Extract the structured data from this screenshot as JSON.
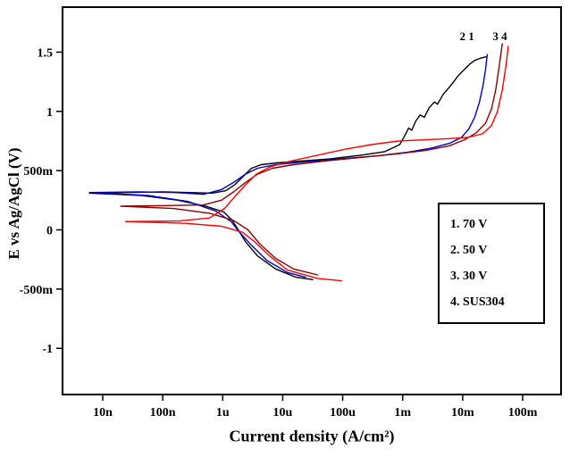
{
  "chart_data": {
    "type": "line",
    "title": "",
    "xlabel": "Current density (A/cm²)",
    "ylabel": "E vs Ag/AgCl (V)",
    "x_scale": "log10",
    "grid": false,
    "xlog_range": [
      -8.67,
      -0.36
    ],
    "ylim": [
      -1.39,
      1.88
    ],
    "x_ticks": [
      {
        "log": -8,
        "label": "10n"
      },
      {
        "log": -7,
        "label": "100n"
      },
      {
        "log": -6,
        "label": "1u"
      },
      {
        "log": -5,
        "label": "10u"
      },
      {
        "log": -4,
        "label": "100u"
      },
      {
        "log": -3,
        "label": "1m"
      },
      {
        "log": -2,
        "label": "10m"
      },
      {
        "log": -1,
        "label": "100m"
      }
    ],
    "y_ticks": [
      {
        "v": 1.5,
        "label": "1.5"
      },
      {
        "v": 1.0,
        "label": "1"
      },
      {
        "v": 0.5,
        "label": "500m"
      },
      {
        "v": 0.0,
        "label": "0"
      },
      {
        "v": -0.5,
        "label": "-500m"
      },
      {
        "v": -1.0,
        "label": "-1"
      }
    ],
    "annotations": [
      {
        "text": "2 1",
        "logx": -1.93,
        "v": 1.6
      },
      {
        "text": "3 4",
        "logx": -1.38,
        "v": 1.6
      }
    ],
    "legend": {
      "position": "right-middle",
      "items": [
        "1. 70 V",
        "2. 50 V",
        "3. 30 V",
        "4. SUS304"
      ]
    },
    "series": [
      {
        "name": "1. 70 V",
        "color": "#000000",
        "points": [
          [
            -4.5,
            -0.42
          ],
          [
            -4.78,
            -0.4
          ],
          [
            -5.12,
            -0.33
          ],
          [
            -5.42,
            -0.22
          ],
          [
            -5.62,
            -0.1
          ],
          [
            -5.74,
            0.0
          ],
          [
            -5.84,
            0.08
          ],
          [
            -5.98,
            0.15
          ],
          [
            -6.28,
            0.2
          ],
          [
            -6.75,
            0.25
          ],
          [
            -7.35,
            0.29
          ],
          [
            -8.22,
            0.31
          ],
          [
            -7.6,
            0.315
          ],
          [
            -7.0,
            0.32
          ],
          [
            -6.55,
            0.315
          ],
          [
            -6.18,
            0.31
          ],
          [
            -5.95,
            0.33
          ],
          [
            -5.8,
            0.38
          ],
          [
            -5.66,
            0.45
          ],
          [
            -5.52,
            0.52
          ],
          [
            -5.36,
            0.55
          ],
          [
            -5.1,
            0.565
          ],
          [
            -4.7,
            0.58
          ],
          [
            -4.2,
            0.6
          ],
          [
            -3.7,
            0.63
          ],
          [
            -3.3,
            0.66
          ],
          [
            -3.05,
            0.72
          ],
          [
            -2.97,
            0.79
          ],
          [
            -2.9,
            0.86
          ],
          [
            -2.85,
            0.84
          ],
          [
            -2.78,
            0.92
          ],
          [
            -2.71,
            0.97
          ],
          [
            -2.64,
            0.95
          ],
          [
            -2.56,
            1.03
          ],
          [
            -2.47,
            1.08
          ],
          [
            -2.42,
            1.06
          ],
          [
            -2.33,
            1.14
          ],
          [
            -2.23,
            1.2
          ],
          [
            -2.15,
            1.25
          ],
          [
            -2.06,
            1.31
          ],
          [
            -1.96,
            1.36
          ],
          [
            -1.88,
            1.4
          ],
          [
            -1.8,
            1.43
          ],
          [
            -1.7,
            1.45
          ],
          [
            -1.61,
            1.46
          ]
        ]
      },
      {
        "name": "2. 50 V",
        "color": "#0000cc",
        "points": [
          [
            -4.62,
            -0.4
          ],
          [
            -4.92,
            -0.36
          ],
          [
            -5.26,
            -0.26
          ],
          [
            -5.52,
            -0.13
          ],
          [
            -5.72,
            -0.02
          ],
          [
            -5.86,
            0.07
          ],
          [
            -6.12,
            0.16
          ],
          [
            -6.58,
            0.24
          ],
          [
            -7.25,
            0.29
          ],
          [
            -8.22,
            0.315
          ],
          [
            -7.4,
            0.32
          ],
          [
            -6.8,
            0.315
          ],
          [
            -6.32,
            0.3
          ],
          [
            -6.02,
            0.34
          ],
          [
            -5.82,
            0.4
          ],
          [
            -5.62,
            0.47
          ],
          [
            -5.42,
            0.52
          ],
          [
            -5.12,
            0.55
          ],
          [
            -4.62,
            0.575
          ],
          [
            -4.02,
            0.6
          ],
          [
            -3.42,
            0.625
          ],
          [
            -2.92,
            0.655
          ],
          [
            -2.52,
            0.69
          ],
          [
            -2.22,
            0.73
          ],
          [
            -2.02,
            0.78
          ],
          [
            -1.9,
            0.85
          ],
          [
            -1.8,
            0.95
          ],
          [
            -1.72,
            1.08
          ],
          [
            -1.66,
            1.22
          ],
          [
            -1.62,
            1.35
          ],
          [
            -1.59,
            1.48
          ]
        ]
      },
      {
        "name": "3. 30 V",
        "color": "#8b0000",
        "points": [
          [
            -4.42,
            -0.38
          ],
          [
            -4.82,
            -0.33
          ],
          [
            -5.12,
            -0.24
          ],
          [
            -5.38,
            -0.12
          ],
          [
            -5.58,
            0.0
          ],
          [
            -5.82,
            0.08
          ],
          [
            -6.22,
            0.14
          ],
          [
            -6.82,
            0.18
          ],
          [
            -7.7,
            0.2
          ],
          [
            -6.92,
            0.205
          ],
          [
            -6.32,
            0.21
          ],
          [
            -6.02,
            0.25
          ],
          [
            -5.82,
            0.32
          ],
          [
            -5.62,
            0.4
          ],
          [
            -5.42,
            0.47
          ],
          [
            -5.17,
            0.52
          ],
          [
            -4.82,
            0.55
          ],
          [
            -4.32,
            0.58
          ],
          [
            -3.72,
            0.61
          ],
          [
            -3.12,
            0.64
          ],
          [
            -2.62,
            0.67
          ],
          [
            -2.22,
            0.71
          ],
          [
            -1.97,
            0.76
          ],
          [
            -1.77,
            0.82
          ],
          [
            -1.62,
            0.9
          ],
          [
            -1.52,
            1.02
          ],
          [
            -1.45,
            1.18
          ],
          [
            -1.4,
            1.35
          ],
          [
            -1.36,
            1.5
          ],
          [
            -1.34,
            1.57
          ]
        ]
      },
      {
        "name": "4. SUS304",
        "color": "#ff0000",
        "points": [
          [
            -4.02,
            -0.43
          ],
          [
            -4.42,
            -0.41
          ],
          [
            -4.92,
            -0.34
          ],
          [
            -5.22,
            -0.22
          ],
          [
            -5.47,
            -0.1
          ],
          [
            -5.67,
            -0.02
          ],
          [
            -6.02,
            0.03
          ],
          [
            -6.62,
            0.055
          ],
          [
            -7.62,
            0.07
          ],
          [
            -6.72,
            0.075
          ],
          [
            -6.22,
            0.1
          ],
          [
            -5.97,
            0.18
          ],
          [
            -5.8,
            0.28
          ],
          [
            -5.62,
            0.38
          ],
          [
            -5.44,
            0.47
          ],
          [
            -5.22,
            0.53
          ],
          [
            -4.87,
            0.58
          ],
          [
            -4.42,
            0.63
          ],
          [
            -3.97,
            0.68
          ],
          [
            -3.52,
            0.72
          ],
          [
            -3.07,
            0.75
          ],
          [
            -2.62,
            0.76
          ],
          [
            -2.22,
            0.77
          ],
          [
            -1.92,
            0.78
          ],
          [
            -1.67,
            0.81
          ],
          [
            -1.52,
            0.88
          ],
          [
            -1.42,
            1.0
          ],
          [
            -1.34,
            1.18
          ],
          [
            -1.28,
            1.38
          ],
          [
            -1.24,
            1.55
          ]
        ]
      }
    ]
  }
}
